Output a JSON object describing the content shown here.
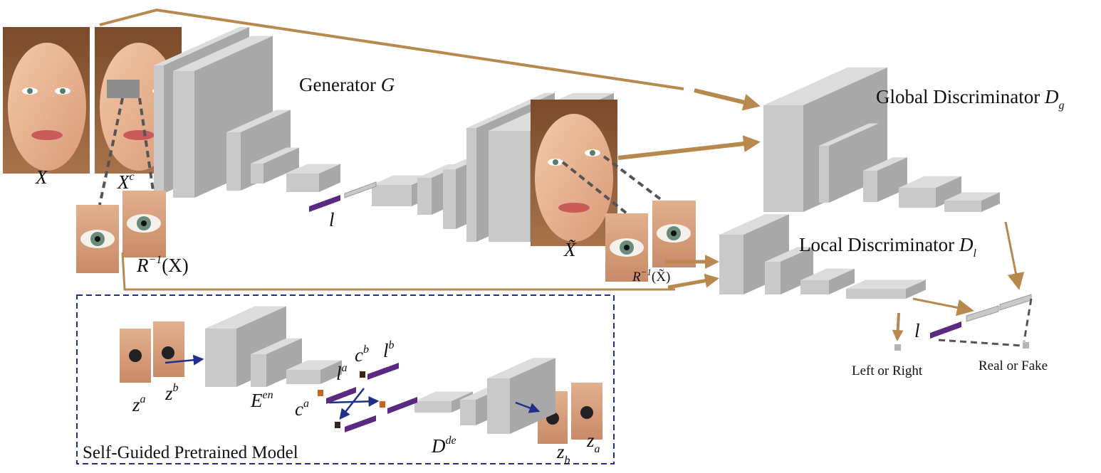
{
  "labels": {
    "generator_title": "Generator ",
    "generator_sym": "G",
    "global_disc_title": "Global Discriminator ",
    "global_disc_sym": "D",
    "global_disc_sub": "g",
    "local_disc_title": "Local Discriminator ",
    "local_disc_sym": "D",
    "local_disc_sub": "l",
    "input_x": "X",
    "input_xc": "X",
    "input_xc_sup": "c",
    "crop_real": "R",
    "crop_real_sup": "−1",
    "crop_real_arg": "(X)",
    "output_sym": "X̃",
    "crop_fake": "R",
    "crop_fake_sup": "−1",
    "crop_fake_arg": "(X̃)",
    "latent_gen": "l",
    "latent_local": "l",
    "left_or_right": "Left or Right",
    "real_or_fake": "Real or Fake",
    "pretrained_title": "Self-Guided Pretrained Model",
    "za": "z",
    "za_sup": "a",
    "zb": "z",
    "zb_sup": "b",
    "encoder": "E",
    "encoder_sup": "en",
    "decoder": "D",
    "decoder_sup": "de",
    "la": "l",
    "la_sup": "a",
    "lb": "l",
    "lb_sup": "b",
    "ca": "c",
    "ca_sup": "a",
    "cb": "c",
    "cb_sup": "b",
    "out_zb": "z",
    "out_zb_sub": "b",
    "out_za": "z",
    "out_za_sub": "a"
  },
  "colors": {
    "block_front": "#c9c9c9",
    "block_side": "#a8a8a8",
    "block_top": "#dcdcdc",
    "arrow_gold": "#b8894e",
    "arrow_blue": "#1f2f8a",
    "latent_purple": "#5a2a82",
    "code_orange": "#c8661e",
    "code_dark": "#3a2418",
    "dash_gray": "#555555",
    "box_border": "#1f2f8a"
  }
}
